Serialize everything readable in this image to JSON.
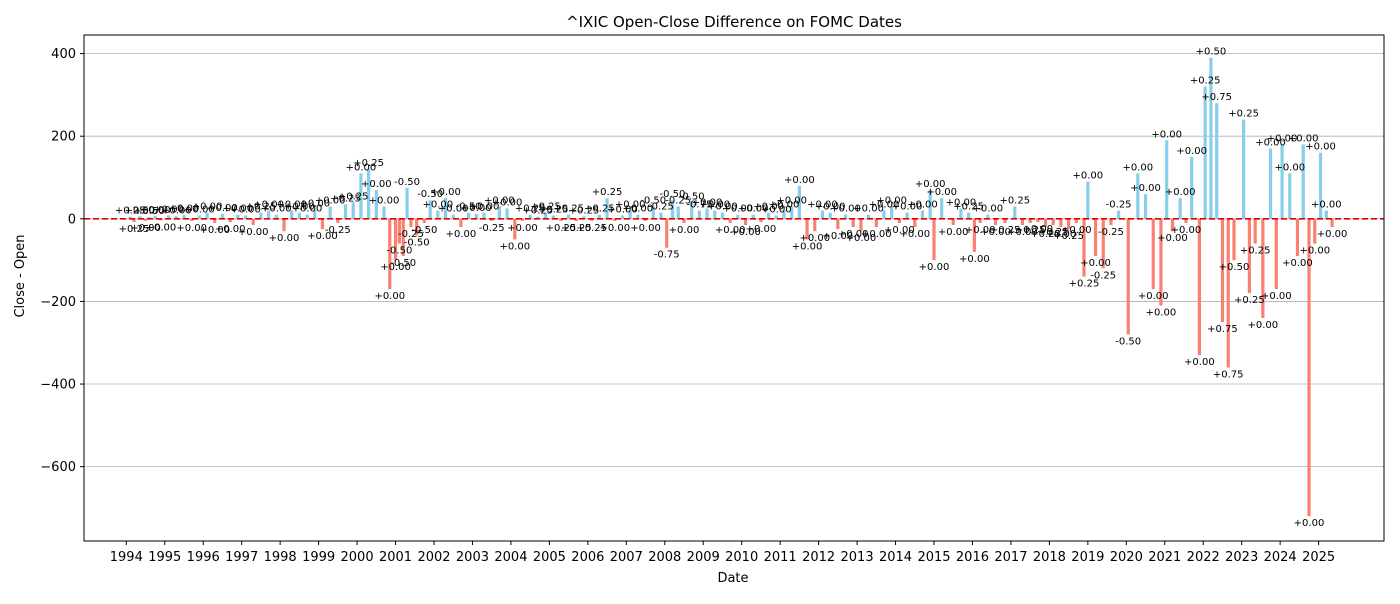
{
  "chart_data": {
    "type": "bar",
    "title": "^IXIC Open-Close Difference on FOMC Dates",
    "xlabel": "Date",
    "ylabel": "Close - Open",
    "ylim": [
      -780,
      445
    ],
    "xlim": [
      1992.9,
      2026.7
    ],
    "yticks": [
      400,
      200,
      0,
      -200,
      -400,
      -600
    ],
    "ytick_labels": [
      "400",
      "200",
      "0",
      "−200",
      "−400",
      "−600"
    ],
    "xticks": [
      1994,
      1995,
      1996,
      1997,
      1998,
      1999,
      2000,
      2001,
      2002,
      2003,
      2004,
      2005,
      2006,
      2007,
      2008,
      2009,
      2010,
      2011,
      2012,
      2013,
      2014,
      2015,
      2016,
      2017,
      2018,
      2019,
      2020,
      2021,
      2022,
      2023,
      2024,
      2025
    ],
    "grid": "y-axis",
    "zero_line": {
      "value": 0,
      "color": "#e00000",
      "style": "dashed"
    },
    "colors": {
      "positive": "#87CEEB",
      "negative": "#FA8072"
    },
    "points": [
      {
        "x": 1994.1,
        "y": 5,
        "label": "+0.25"
      },
      {
        "x": 1994.2,
        "y": -8,
        "label": "+0.25"
      },
      {
        "x": 1994.35,
        "y": 6,
        "label": "+0.50"
      },
      {
        "x": 1994.5,
        "y": -5,
        "label": "+0.00"
      },
      {
        "x": 1994.6,
        "y": 4,
        "label": "+0.50"
      },
      {
        "x": 1994.75,
        "y": 7,
        "label": "+0.00"
      },
      {
        "x": 1994.9,
        "y": -4,
        "label": "+0.00"
      },
      {
        "x": 1995.1,
        "y": 8,
        "label": "+0.00"
      },
      {
        "x": 1995.3,
        "y": 6,
        "label": "+0.00"
      },
      {
        "x": 1995.5,
        "y": 10,
        "label": "+0.00"
      },
      {
        "x": 1995.7,
        "y": -5,
        "label": "+0.00"
      },
      {
        "x": 1995.9,
        "y": 8,
        "label": "+0.00"
      },
      {
        "x": 1996.1,
        "y": 15,
        "label": "+0.00"
      },
      {
        "x": 1996.3,
        "y": -10,
        "label": "+0.00"
      },
      {
        "x": 1996.5,
        "y": 12,
        "label": "+0.00"
      },
      {
        "x": 1996.7,
        "y": -8,
        "label": "+0.00"
      },
      {
        "x": 1996.9,
        "y": 10,
        "label": "+0.00"
      },
      {
        "x": 1997.1,
        "y": 8,
        "label": "+0.00"
      },
      {
        "x": 1997.3,
        "y": -15,
        "label": "+0.00"
      },
      {
        "x": 1997.5,
        "y": 15,
        "label": "+0.25"
      },
      {
        "x": 1997.7,
        "y": 20,
        "label": "+0.00"
      },
      {
        "x": 1997.9,
        "y": 10,
        "label": "+0.00"
      },
      {
        "x": 1998.1,
        "y": -30,
        "label": "+0.00"
      },
      {
        "x": 1998.3,
        "y": 20,
        "label": "+0.00"
      },
      {
        "x": 1998.5,
        "y": 15,
        "label": "+0.00"
      },
      {
        "x": 1998.7,
        "y": 10,
        "label": "+0.00"
      },
      {
        "x": 1998.9,
        "y": 22,
        "label": "+0.00"
      },
      {
        "x": 1999.1,
        "y": -25,
        "label": "+0.00"
      },
      {
        "x": 1999.3,
        "y": 30,
        "label": "+0.00"
      },
      {
        "x": 1999.5,
        "y": -10,
        "label": "-0.25"
      },
      {
        "x": 1999.7,
        "y": 35,
        "label": "+0.25"
      },
      {
        "x": 1999.9,
        "y": 40,
        "label": "+0.25"
      },
      {
        "x": 2000.1,
        "y": 110,
        "label": "+0.00"
      },
      {
        "x": 2000.3,
        "y": 120,
        "label": "+0.25"
      },
      {
        "x": 2000.5,
        "y": 70,
        "label": "+0.00"
      },
      {
        "x": 2000.7,
        "y": 30,
        "label": "+0.00"
      },
      {
        "x": 2000.85,
        "y": -170,
        "label": "+0.00"
      },
      {
        "x": 2001.0,
        "y": -100,
        "label": "+0.00"
      },
      {
        "x": 2001.1,
        "y": -60,
        "label": "-0.50"
      },
      {
        "x": 2001.2,
        "y": -90,
        "label": "-0.50"
      },
      {
        "x": 2001.3,
        "y": 75,
        "label": "-0.50"
      },
      {
        "x": 2001.4,
        "y": -20,
        "label": "-0.25"
      },
      {
        "x": 2001.55,
        "y": -40,
        "label": "-0.50"
      },
      {
        "x": 2001.75,
        "y": -10,
        "label": "-0.50"
      },
      {
        "x": 2001.9,
        "y": 45,
        "label": "-0.50"
      },
      {
        "x": 2002.1,
        "y": 20,
        "label": "+0.00"
      },
      {
        "x": 2002.3,
        "y": 50,
        "label": "+0.00"
      },
      {
        "x": 2002.5,
        "y": 10,
        "label": "+0.00"
      },
      {
        "x": 2002.7,
        "y": -20,
        "label": "+0.00"
      },
      {
        "x": 2002.9,
        "y": 15,
        "label": "-0.50"
      },
      {
        "x": 2003.1,
        "y": 12,
        "label": "+0.00"
      },
      {
        "x": 2003.3,
        "y": 15,
        "label": "+0.00"
      },
      {
        "x": 2003.5,
        "y": -5,
        "label": "-0.25"
      },
      {
        "x": 2003.7,
        "y": 30,
        "label": "+0.00"
      },
      {
        "x": 2003.9,
        "y": 25,
        "label": "+0.00"
      },
      {
        "x": 2004.1,
        "y": -50,
        "label": "+0.00"
      },
      {
        "x": 2004.3,
        "y": -5,
        "label": "+0.00"
      },
      {
        "x": 2004.5,
        "y": 10,
        "label": "+0.25"
      },
      {
        "x": 2004.7,
        "y": 5,
        "label": "+0.25"
      },
      {
        "x": 2004.9,
        "y": 15,
        "label": "+0.25"
      },
      {
        "x": 2005.1,
        "y": 8,
        "label": "+0.25"
      },
      {
        "x": 2005.3,
        "y": -5,
        "label": "+0.25"
      },
      {
        "x": 2005.5,
        "y": 10,
        "label": "+0.25"
      },
      {
        "x": 2005.7,
        "y": -5,
        "label": "+0.25"
      },
      {
        "x": 2005.9,
        "y": 6,
        "label": "+0.25"
      },
      {
        "x": 2006.1,
        "y": -5,
        "label": "+0.25"
      },
      {
        "x": 2006.3,
        "y": 10,
        "label": "+0.25"
      },
      {
        "x": 2006.5,
        "y": 50,
        "label": "+0.25"
      },
      {
        "x": 2006.7,
        "y": -5,
        "label": "+0.00"
      },
      {
        "x": 2006.9,
        "y": 8,
        "label": "+0.00"
      },
      {
        "x": 2007.1,
        "y": 20,
        "label": "+0.00"
      },
      {
        "x": 2007.3,
        "y": 10,
        "label": "+0.00"
      },
      {
        "x": 2007.5,
        "y": -5,
        "label": "+0.00"
      },
      {
        "x": 2007.7,
        "y": 30,
        "label": "-0.50"
      },
      {
        "x": 2007.9,
        "y": 15,
        "label": "-0.25"
      },
      {
        "x": 2008.05,
        "y": -70,
        "label": "-0.75"
      },
      {
        "x": 2008.2,
        "y": 45,
        "label": "-0.50"
      },
      {
        "x": 2008.35,
        "y": 30,
        "label": "-0.25"
      },
      {
        "x": 2008.5,
        "y": -10,
        "label": "+0.00"
      },
      {
        "x": 2008.7,
        "y": 40,
        "label": "-0.50"
      },
      {
        "x": 2008.9,
        "y": 20,
        "label": "-0.75"
      },
      {
        "x": 2009.1,
        "y": 25,
        "label": "+0.00"
      },
      {
        "x": 2009.3,
        "y": 20,
        "label": "+0.00"
      },
      {
        "x": 2009.5,
        "y": 15,
        "label": "+0.00"
      },
      {
        "x": 2009.7,
        "y": -10,
        "label": "+0.00"
      },
      {
        "x": 2009.9,
        "y": 10,
        "label": "+0.00"
      },
      {
        "x": 2010.1,
        "y": -15,
        "label": "+0.00"
      },
      {
        "x": 2010.3,
        "y": 10,
        "label": "+0.00"
      },
      {
        "x": 2010.5,
        "y": -8,
        "label": "+0.00"
      },
      {
        "x": 2010.7,
        "y": 15,
        "label": "+0.00"
      },
      {
        "x": 2010.9,
        "y": 8,
        "label": "+0.00"
      },
      {
        "x": 2011.1,
        "y": 20,
        "label": "+0.00"
      },
      {
        "x": 2011.3,
        "y": 30,
        "label": "+0.00"
      },
      {
        "x": 2011.5,
        "y": 80,
        "label": "+0.00"
      },
      {
        "x": 2011.7,
        "y": -50,
        "label": "+0.00"
      },
      {
        "x": 2011.9,
        "y": -30,
        "label": "+0.00"
      },
      {
        "x": 2012.1,
        "y": 20,
        "label": "+0.00"
      },
      {
        "x": 2012.3,
        "y": 15,
        "label": "+0.00"
      },
      {
        "x": 2012.5,
        "y": -25,
        "label": "+0.00"
      },
      {
        "x": 2012.7,
        "y": 10,
        "label": "+0.00"
      },
      {
        "x": 2012.9,
        "y": -20,
        "label": "+0.00"
      },
      {
        "x": 2013.1,
        "y": -30,
        "label": "+0.00"
      },
      {
        "x": 2013.3,
        "y": 10,
        "label": "+0.00"
      },
      {
        "x": 2013.5,
        "y": -20,
        "label": "+0.00"
      },
      {
        "x": 2013.7,
        "y": 20,
        "label": "+0.00"
      },
      {
        "x": 2013.9,
        "y": 30,
        "label": "+0.00"
      },
      {
        "x": 2014.1,
        "y": -10,
        "label": "+0.00"
      },
      {
        "x": 2014.3,
        "y": 15,
        "label": "+0.00"
      },
      {
        "x": 2014.5,
        "y": -20,
        "label": "+0.00"
      },
      {
        "x": 2014.7,
        "y": 20,
        "label": "+0.00"
      },
      {
        "x": 2014.9,
        "y": 70,
        "label": "+0.00"
      },
      {
        "x": 2015.0,
        "y": -100,
        "label": "+0.00"
      },
      {
        "x": 2015.2,
        "y": 50,
        "label": "+0.00"
      },
      {
        "x": 2015.5,
        "y": -15,
        "label": "+0.00"
      },
      {
        "x": 2015.7,
        "y": 25,
        "label": "+0.00"
      },
      {
        "x": 2015.9,
        "y": 15,
        "label": "+0.25"
      },
      {
        "x": 2016.05,
        "y": -80,
        "label": "+0.00"
      },
      {
        "x": 2016.2,
        "y": -10,
        "label": "+0.00"
      },
      {
        "x": 2016.4,
        "y": 10,
        "label": "+0.00"
      },
      {
        "x": 2016.6,
        "y": -15,
        "label": "+0.00"
      },
      {
        "x": 2016.85,
        "y": -10,
        "label": "+0.25"
      },
      {
        "x": 2017.1,
        "y": 30,
        "label": "+0.25"
      },
      {
        "x": 2017.3,
        "y": -15,
        "label": "+0.00"
      },
      {
        "x": 2017.5,
        "y": -10,
        "label": "+0.25"
      },
      {
        "x": 2017.7,
        "y": -8,
        "label": "+0.00"
      },
      {
        "x": 2017.9,
        "y": -20,
        "label": "+0.25"
      },
      {
        "x": 2018.1,
        "y": -15,
        "label": "+0.25"
      },
      {
        "x": 2018.3,
        "y": -20,
        "label": "+0.00"
      },
      {
        "x": 2018.5,
        "y": -25,
        "label": "+0.25"
      },
      {
        "x": 2018.7,
        "y": -10,
        "label": "+0.00"
      },
      {
        "x": 2018.9,
        "y": -140,
        "label": "+0.25"
      },
      {
        "x": 2019.0,
        "y": 90,
        "label": "+0.00"
      },
      {
        "x": 2019.2,
        "y": -90,
        "label": "+0.00"
      },
      {
        "x": 2019.4,
        "y": -120,
        "label": "-0.25"
      },
      {
        "x": 2019.6,
        "y": -15,
        "label": "-0.25"
      },
      {
        "x": 2019.8,
        "y": 20,
        "label": "-0.25"
      },
      {
        "x": 2020.05,
        "y": -280,
        "label": "-0.50"
      },
      {
        "x": 2020.3,
        "y": 110,
        "label": "+0.00"
      },
      {
        "x": 2020.5,
        "y": 60,
        "label": "+0.00"
      },
      {
        "x": 2020.7,
        "y": -170,
        "label": "+0.00"
      },
      {
        "x": 2020.9,
        "y": -210,
        "label": "+0.00"
      },
      {
        "x": 2021.05,
        "y": 190,
        "label": "+0.00"
      },
      {
        "x": 2021.2,
        "y": -30,
        "label": "+0.00"
      },
      {
        "x": 2021.4,
        "y": 50,
        "label": "+0.00"
      },
      {
        "x": 2021.55,
        "y": -10,
        "label": "+0.00"
      },
      {
        "x": 2021.7,
        "y": 150,
        "label": "+0.00"
      },
      {
        "x": 2021.9,
        "y": -330,
        "label": "+0.00"
      },
      {
        "x": 2022.05,
        "y": 320,
        "label": "+0.25"
      },
      {
        "x": 2022.2,
        "y": 390,
        "label": "+0.50"
      },
      {
        "x": 2022.35,
        "y": 280,
        "label": "+0.75"
      },
      {
        "x": 2022.5,
        "y": -250,
        "label": "+0.75"
      },
      {
        "x": 2022.65,
        "y": -360,
        "label": "+0.75"
      },
      {
        "x": 2022.8,
        "y": -100,
        "label": "+0.50"
      },
      {
        "x": 2023.05,
        "y": 240,
        "label": "+0.25"
      },
      {
        "x": 2023.2,
        "y": -180,
        "label": "+0.25"
      },
      {
        "x": 2023.35,
        "y": -60,
        "label": "+0.25"
      },
      {
        "x": 2023.55,
        "y": -240,
        "label": "+0.00"
      },
      {
        "x": 2023.75,
        "y": 170,
        "label": "+0.00"
      },
      {
        "x": 2023.9,
        "y": -170,
        "label": "+0.00"
      },
      {
        "x": 2024.05,
        "y": 180,
        "label": "+0.00"
      },
      {
        "x": 2024.25,
        "y": 110,
        "label": "+0.00"
      },
      {
        "x": 2024.45,
        "y": -90,
        "label": "+0.00"
      },
      {
        "x": 2024.6,
        "y": 180,
        "label": "+0.00"
      },
      {
        "x": 2024.75,
        "y": -720,
        "label": "+0.00"
      },
      {
        "x": 2024.9,
        "y": -60,
        "label": "+0.00"
      },
      {
        "x": 2025.05,
        "y": 160,
        "label": "+0.00"
      },
      {
        "x": 2025.2,
        "y": 20,
        "label": "+0.00"
      },
      {
        "x": 2025.35,
        "y": -20,
        "label": "+0.00"
      }
    ]
  }
}
